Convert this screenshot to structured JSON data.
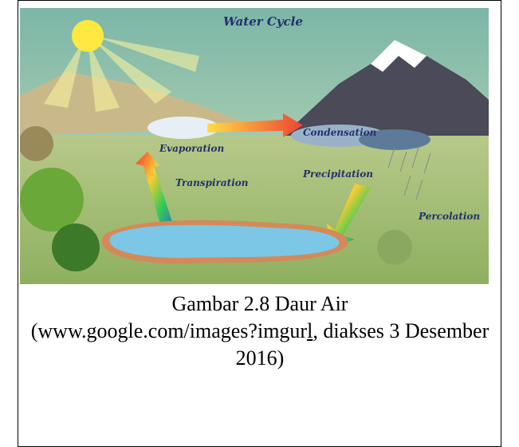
{
  "figure": {
    "image_labels": {
      "title": "Water Cycle",
      "condensation": "Condensation",
      "evaporation": "Evaporation",
      "transpiration": "Transpiration",
      "precipitation": "Precipitation",
      "percolation": "Percolation"
    },
    "caption": {
      "line1": "Gambar 2.8 Daur Air",
      "source_start": "(www.google.com/images?imgur",
      "source_underlined": "l",
      "source_end": ", diakses 3 Desember 2016)"
    }
  }
}
